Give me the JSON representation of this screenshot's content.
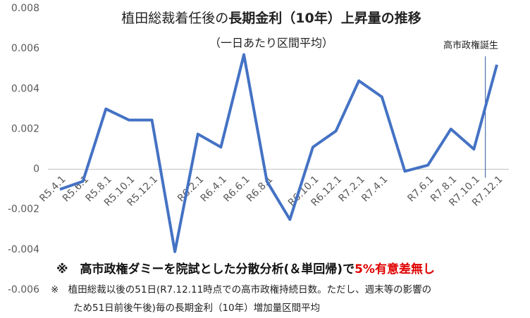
{
  "chart_data": {
    "type": "line",
    "title_parts": [
      "植田総裁着任後の",
      "長期金利（10年）上昇量の推移"
    ],
    "subtitle": "（一日あたり区間平均）",
    "annotation": "高市政権誕生",
    "note_parts": [
      "※　高市政権ダミーを院試とした分散分析(＆単回帰)で",
      "5%有意差無し"
    ],
    "footnote": [
      "※　植田総裁以後の51日(R7.12.11時点での高市政権持続日数。ただし、週末等の影響の",
      "ため51日前後午後)毎の長期金利（10年）増加量区間平均"
    ],
    "categories": [
      "R5.4.1",
      "R5.6.1",
      "R5.8.1",
      "R5.10.1",
      "R5.12.1",
      null,
      "R6.2.1",
      "R6.4.1",
      "R6.6.1",
      "R6.8.1",
      null,
      "R6.10.1",
      "R6.12.1",
      "R7.2.1",
      "R7.4.1",
      null,
      "R7.6.1",
      "R7.8.1",
      "R7.10.1",
      "R7.12.1"
    ],
    "series": [
      {
        "name": "長期金利（10年）上昇量",
        "color": "#4472c4",
        "values": [
          -0.001,
          -0.0006,
          0.003,
          0.00245,
          0.00245,
          -0.0041,
          0.00175,
          0.0011,
          0.0057,
          -0.0006,
          -0.0025,
          0.0011,
          0.0019,
          0.0044,
          0.0036,
          -0.0001,
          0.0002,
          0.002,
          0.001,
          0.0052
        ]
      }
    ],
    "ylim": [
      -0.006,
      0.008
    ],
    "yticks": [
      -0.006,
      -0.004,
      -0.002,
      0,
      0.002,
      0.004,
      0.006,
      0.008
    ]
  }
}
